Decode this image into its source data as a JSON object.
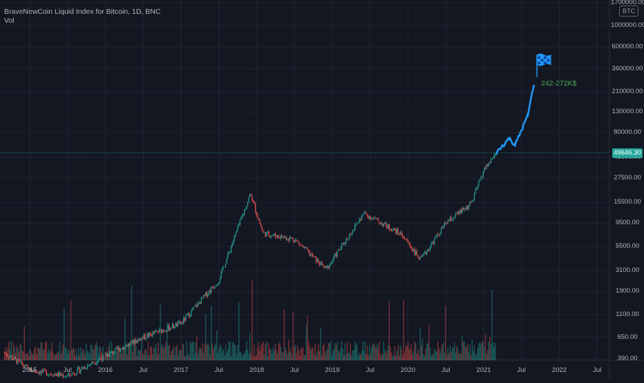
{
  "legend": {
    "title": "BraveNewCoin Liquid Index for Bitcoin, 1D, BNC",
    "volume": "Vol"
  },
  "price_axis": {
    "currency_badge": "BTC",
    "labels": [
      "1700000.00",
      "1000000.00",
      "600000.00",
      "360000.00",
      "210000.00",
      "130000.00",
      "80000.00",
      "45000.00",
      "27500.00",
      "15500.00",
      "9500.00",
      "5500.00",
      "3100.00",
      "1900.00",
      "1100.00",
      "650.00",
      "390.00"
    ],
    "last_price": "49646.30"
  },
  "time_axis": {
    "labels": [
      "2015",
      "Jul",
      "2016",
      "Jul",
      "2017",
      "Jul",
      "2018",
      "Jul",
      "2019",
      "Jul",
      "2020",
      "Jul",
      "2021",
      "Jul",
      "2022",
      "Jul"
    ]
  },
  "annotation": {
    "target_text": "242-272K$",
    "flag_icon": "checkered-flag-icon"
  },
  "colors": {
    "background": "#131722",
    "grid": "#1f2430",
    "up": "#26a69a",
    "down": "#ef5350",
    "projection": "#2196f3",
    "target_text": "#4caf50"
  },
  "chart_data": {
    "type": "line",
    "title": "BraveNewCoin Liquid Index for Bitcoin, 1D, BNC",
    "y_scale": "log",
    "ylim": [
      390,
      1700000
    ],
    "grid": true,
    "last_price": 49646.3,
    "series": [
      {
        "x": [
          "2014-09",
          "2015-01",
          "2015-07",
          "2016-01",
          "2016-07",
          "2017-01",
          "2017-07",
          "2017-12",
          "2018-02",
          "2018-07",
          "2018-12",
          "2019-06",
          "2019-12",
          "2020-03",
          "2020-07",
          "2020-11",
          "2021-01",
          "2021-03"
        ],
        "y": [
          450,
          300,
          260,
          420,
          650,
          900,
          2500,
          19000,
          7500,
          6500,
          3200,
          12000,
          7300,
          4000,
          9500,
          15000,
          33000,
          49646
        ]
      },
      {
        "name": "projection",
        "x": [
          "2021-03",
          "2021-05",
          "2021-06",
          "2021-08",
          "2021-09"
        ],
        "y": [
          49646,
          70000,
          60000,
          120000,
          260000
        ]
      }
    ]
  }
}
